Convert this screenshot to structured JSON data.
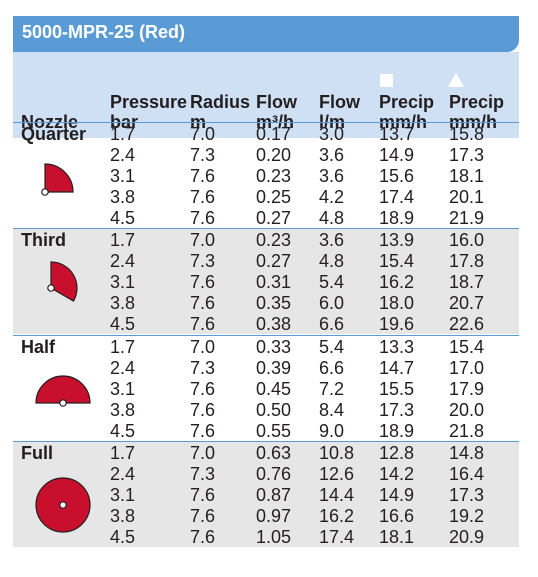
{
  "title": "5000-MPR-25 (Red)",
  "headers": {
    "nozzle": "Nozzle",
    "pressure": [
      "Pressure",
      "bar"
    ],
    "radius": [
      "Radius",
      "m"
    ],
    "flow_m3h": [
      "Flow",
      "m³/h"
    ],
    "flow_lm": [
      "Flow",
      "l/m"
    ],
    "precip_square": [
      "Precip",
      "mm/h"
    ],
    "precip_triangle": [
      "Precip",
      "mm/h"
    ]
  },
  "symbols": {
    "square": "square-spacing-icon",
    "triangle": "triangle-spacing-icon"
  },
  "colors": {
    "accent": "#5b9bd5",
    "header_bg": "#cfe0f4",
    "shade": "#e6e6e6",
    "arc_fill": "#c8102e"
  },
  "groups": [
    {
      "name": "Quarter",
      "icon": "quarter-arc-icon",
      "rows": [
        [
          "1.7",
          "7.0",
          "0.17",
          "3.0",
          "13.7",
          "15.8"
        ],
        [
          "2.4",
          "7.3",
          "0.20",
          "3.6",
          "14.9",
          "17.3"
        ],
        [
          "3.1",
          "7.6",
          "0.23",
          "3.6",
          "15.6",
          "18.1"
        ],
        [
          "3.8",
          "7.6",
          "0.25",
          "4.2",
          "17.4",
          "20.1"
        ],
        [
          "4.5",
          "7.6",
          "0.27",
          "4.8",
          "18.9",
          "21.9"
        ]
      ]
    },
    {
      "name": "Third",
      "icon": "third-arc-icon",
      "rows": [
        [
          "1.7",
          "7.0",
          "0.23",
          "3.6",
          "13.9",
          "16.0"
        ],
        [
          "2.4",
          "7.3",
          "0.27",
          "4.8",
          "15.4",
          "17.8"
        ],
        [
          "3.1",
          "7.6",
          "0.31",
          "5.4",
          "16.2",
          "18.7"
        ],
        [
          "3.8",
          "7.6",
          "0.35",
          "6.0",
          "18.0",
          "20.7"
        ],
        [
          "4.5",
          "7.6",
          "0.38",
          "6.6",
          "19.6",
          "22.6"
        ]
      ]
    },
    {
      "name": "Half",
      "icon": "half-arc-icon",
      "rows": [
        [
          "1.7",
          "7.0",
          "0.33",
          "5.4",
          "13.3",
          "15.4"
        ],
        [
          "2.4",
          "7.3",
          "0.39",
          "6.6",
          "14.7",
          "17.0"
        ],
        [
          "3.1",
          "7.6",
          "0.45",
          "7.2",
          "15.5",
          "17.9"
        ],
        [
          "3.8",
          "7.6",
          "0.50",
          "8.4",
          "17.3",
          "20.0"
        ],
        [
          "4.5",
          "7.6",
          "0.55",
          "9.0",
          "18.9",
          "21.8"
        ]
      ]
    },
    {
      "name": "Full",
      "icon": "full-circle-icon",
      "rows": [
        [
          "1.7",
          "7.0",
          "0.63",
          "10.8",
          "12.8",
          "14.8"
        ],
        [
          "2.4",
          "7.3",
          "0.76",
          "12.6",
          "14.2",
          "16.4"
        ],
        [
          "3.1",
          "7.6",
          "0.87",
          "14.4",
          "14.9",
          "17.3"
        ],
        [
          "3.8",
          "7.6",
          "0.97",
          "16.2",
          "16.6",
          "19.2"
        ],
        [
          "4.5",
          "7.6",
          "1.05",
          "17.4",
          "18.1",
          "20.9"
        ]
      ]
    }
  ]
}
